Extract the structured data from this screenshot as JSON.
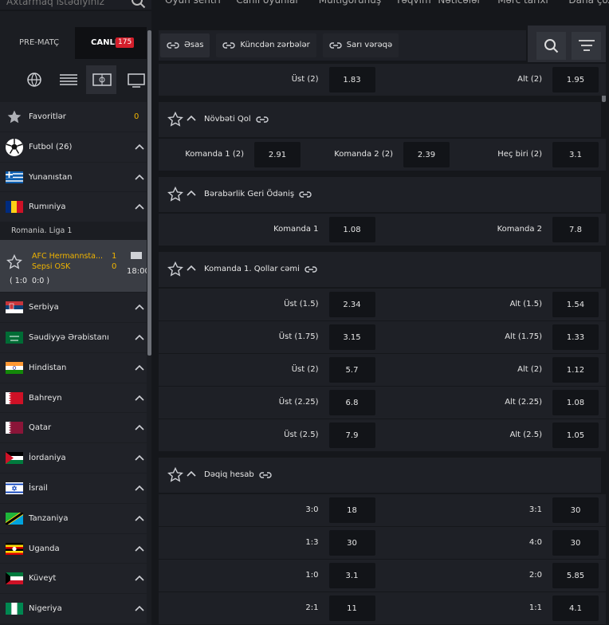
{
  "search": {
    "placeholder": "Axtarmaq istədiyiniz"
  },
  "breadcrumb": [
    "Oyun sentri",
    "Canlı oyunlar",
    "Multigörünüş",
    "Təqvim",
    "Nəticələr",
    "Mərc tarixi",
    "Daha çox"
  ],
  "sidebar": {
    "tabs": {
      "prematch": "PRE-MATÇ",
      "live": "CANLI",
      "live_count": 175
    },
    "favorites": {
      "label": "Favoritlər",
      "count": 0
    },
    "sport": "Futbol (26)",
    "countries_before": [
      "Yunanıstan",
      "Rumıniya"
    ],
    "league": "Romania. Liga 1",
    "match": {
      "team1": "AFC Hermannsta...",
      "team2": "Sepsi OSK",
      "score1": 1,
      "score2": 0,
      "time": "18:00",
      "periods": "( 1:0  0:0 )"
    },
    "countries_after": [
      "Serbiya",
      "Səudiyyə Ərəbistanı",
      "Hindistan",
      "Bahreyn",
      "Qatar",
      "İordaniya",
      "İsrail",
      "Tanzaniya",
      "Uganda",
      "Küveyt",
      "Nigeriya"
    ]
  },
  "toolbar": {
    "tabs": [
      "Əsas",
      "Küncdən zərbələr",
      "Sarı vərəqə"
    ]
  },
  "markets": [
    {
      "rows": [
        [
          {
            "label": "Üst (2)",
            "odd": 1.83
          },
          {
            "label": "Alt (2)",
            "odd": 1.95
          }
        ]
      ]
    },
    {
      "title": "Növbəti Qol",
      "rows": [
        [
          {
            "label": "Komanda 1 (2)",
            "odd": 2.91
          },
          {
            "label": "Komanda 2 (2)",
            "odd": 2.39
          },
          {
            "label": "Heç biri (2)",
            "odd": 3.1
          }
        ]
      ]
    },
    {
      "title": "Bərabərlik Geri Ödəniş",
      "rows": [
        [
          {
            "label": "Komanda 1",
            "odd": 1.08
          },
          {
            "label": "Komanda 2",
            "odd": 7.8
          }
        ]
      ]
    },
    {
      "title": "Komanda 1. Qollar cəmi",
      "rows": [
        [
          {
            "label": "Üst (1.5)",
            "odd": 2.34
          },
          {
            "label": "Alt (1.5)",
            "odd": 1.54
          }
        ],
        [
          {
            "label": "Üst (1.75)",
            "odd": 3.15
          },
          {
            "label": "Alt (1.75)",
            "odd": 1.33
          }
        ],
        [
          {
            "label": "Üst (2)",
            "odd": 5.7
          },
          {
            "label": "Alt (2)",
            "odd": 1.12
          }
        ],
        [
          {
            "label": "Üst (2.25)",
            "odd": 6.8
          },
          {
            "label": "Alt (2.25)",
            "odd": 1.08
          }
        ],
        [
          {
            "label": "Üst (2.5)",
            "odd": 7.9
          },
          {
            "label": "Alt (2.5)",
            "odd": 1.05
          }
        ]
      ]
    },
    {
      "title": "Dəqiq hesab",
      "rows": [
        [
          {
            "label": "3:0",
            "odd": 18
          },
          {
            "label": "3:1",
            "odd": 30
          }
        ],
        [
          {
            "label": "1:3",
            "odd": 30
          },
          {
            "label": "4:0",
            "odd": 30
          }
        ],
        [
          {
            "label": "1:0",
            "odd": 3.1
          },
          {
            "label": "2:0",
            "odd": 5.85
          }
        ],
        [
          {
            "label": "2:1",
            "odd": 11
          },
          {
            "label": "1:1",
            "odd": 4.1
          }
        ]
      ]
    }
  ]
}
